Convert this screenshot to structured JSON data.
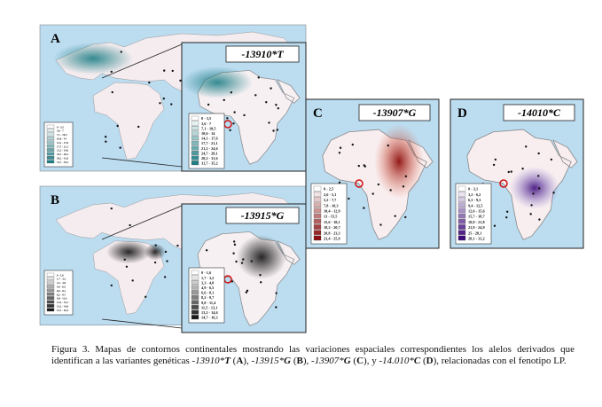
{
  "panels": [
    {
      "letter": "A",
      "variant": "-13910*T",
      "color": "#1e7f86",
      "legend": [
        "0 - 3,5",
        "3,6 - 7",
        "7,1 - 10,5",
        "10,6 - 14",
        "14,1 - 17,6",
        "17,7 - 21,1",
        "21,2 - 24,6",
        "24,7 - 28,1",
        "28,2 - 31,6",
        "31,7 - 35,2"
      ]
    },
    {
      "letter": "B",
      "variant": "-13915*G",
      "color": "#1a1a1a",
      "legend": [
        "0 - 1,6",
        "1,7 - 3,2",
        "3,3 - 4,8",
        "4,9 - 6,5",
        "6,6 - 8,1",
        "8,2 - 9,7",
        "9,8 - 11,4",
        "11,5 - 13,1",
        "13,2 - 14,6",
        "14,7 - 16,3"
      ]
    },
    {
      "letter": "C",
      "variant": "-13907*G",
      "color": "#8b0f0f",
      "legend": [
        "0 - 2,5",
        "2,6 - 5,1",
        "5,2 - 7,7",
        "7,8 - 10,3",
        "10,4 - 12,9",
        "13 - 15,5",
        "15,6 - 18,1",
        "18,2 - 20,7",
        "20,8 - 23,3",
        "23,4 - 25,9"
      ]
    },
    {
      "letter": "D",
      "variant": "-14010*C",
      "color": "#3d0a7a",
      "legend": [
        "0 - 3,1",
        "3,2 - 6,2",
        "6,3 - 9,3",
        "9,4 - 12,5",
        "12,6 - 15,6",
        "15,7 - 18,7",
        "18,8 - 21,8",
        "21,9 - 24,9",
        "25 - 28,1",
        "28,1 - 31,2"
      ]
    }
  ],
  "caption": [
    "Figura 3. Mapas de contornos continentales mostrando las variaciones espaciales correspondientes los alelos derivados que identifican a las variantes genéticas ",
    "-13910*",
    "T",
    " (",
    "A",
    "), ",
    "-13915*",
    "G",
    " (",
    "B",
    "), ",
    "-13907*",
    "G",
    " (",
    "C",
    "), y ",
    "-14.010*",
    "C",
    " (",
    "D",
    "), relacionadas con el fenotipo LP."
  ]
}
